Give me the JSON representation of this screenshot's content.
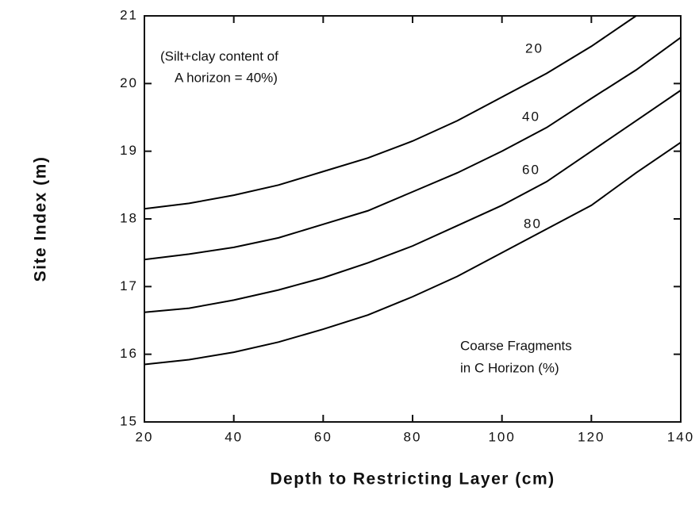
{
  "chart_data": {
    "type": "line",
    "xlabel": "Depth to Restricting Layer (cm)",
    "ylabel": "Site Index (m)",
    "x": [
      20,
      30,
      40,
      50,
      60,
      70,
      80,
      90,
      100,
      110,
      120,
      130,
      140
    ],
    "series": [
      {
        "name": "20",
        "color": "#000000",
        "values": [
          18.15,
          18.23,
          18.35,
          18.5,
          18.7,
          18.9,
          19.15,
          19.45,
          19.8,
          20.15,
          20.55,
          21.0,
          null
        ]
      },
      {
        "name": "40",
        "color": "#000000",
        "values": [
          17.4,
          17.48,
          17.58,
          17.72,
          17.92,
          18.12,
          18.4,
          18.68,
          19.0,
          19.35,
          19.78,
          20.2,
          20.68
        ]
      },
      {
        "name": "60",
        "color": "#000000",
        "values": [
          16.62,
          16.68,
          16.8,
          16.95,
          17.13,
          17.35,
          17.6,
          17.9,
          18.2,
          18.55,
          19.0,
          19.45,
          19.9
        ]
      },
      {
        "name": "80",
        "color": "#000000",
        "values": [
          15.85,
          15.92,
          16.03,
          16.18,
          16.37,
          16.58,
          16.85,
          17.15,
          17.5,
          17.85,
          18.2,
          18.68,
          19.13
        ]
      }
    ],
    "annotations": [
      "(Silt+clay content of",
      "A horizon = 40%)",
      "Coarse Fragments",
      "in C Horizon (%)"
    ],
    "xlim": [
      20,
      140
    ],
    "xticks": [
      20,
      40,
      60,
      80,
      100,
      120,
      140
    ],
    "ylim": [
      15,
      21
    ],
    "yticks": [
      15,
      16,
      17,
      18,
      19,
      20,
      21
    ],
    "grid": false
  }
}
